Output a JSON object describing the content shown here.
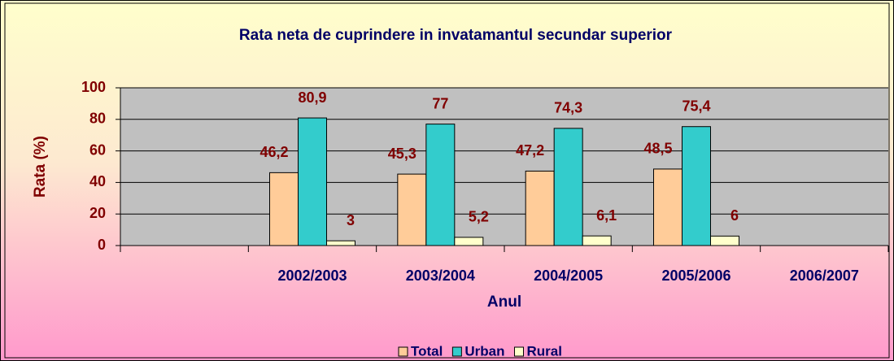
{
  "chart_data": {
    "type": "bar",
    "title": "Rata neta de cuprindere in invatamantul secundar superior",
    "x_label": "Anul",
    "y_label": "Rata (%)",
    "categories": [
      null,
      "2002/2003",
      "2003/2004",
      "2004/2005",
      "2005/2006",
      "2006/2007"
    ],
    "series": [
      {
        "name": "Total",
        "color": "#ffcc99",
        "values": [
          null,
          46.2,
          45.3,
          47.2,
          48.5,
          null
        ],
        "value_labels": [
          null,
          "46,2",
          "45,3",
          "47,2",
          "48,5",
          null
        ]
      },
      {
        "name": "Urban",
        "color": "#33cccc",
        "values": [
          null,
          80.9,
          77,
          74.3,
          75.4,
          null
        ],
        "value_labels": [
          null,
          "80,9",
          "77",
          "74,3",
          "75,4",
          null
        ]
      },
      {
        "name": "Rural",
        "color": "#ffffcc",
        "values": [
          null,
          3,
          5.2,
          6.1,
          6,
          null
        ],
        "value_labels": [
          null,
          "3",
          "5,2",
          "6,1",
          "6",
          null
        ]
      }
    ],
    "ylim": [
      0,
      100
    ],
    "yticks": [
      0,
      20,
      40,
      60,
      80,
      100
    ],
    "grid": true,
    "legend": "bottom"
  }
}
